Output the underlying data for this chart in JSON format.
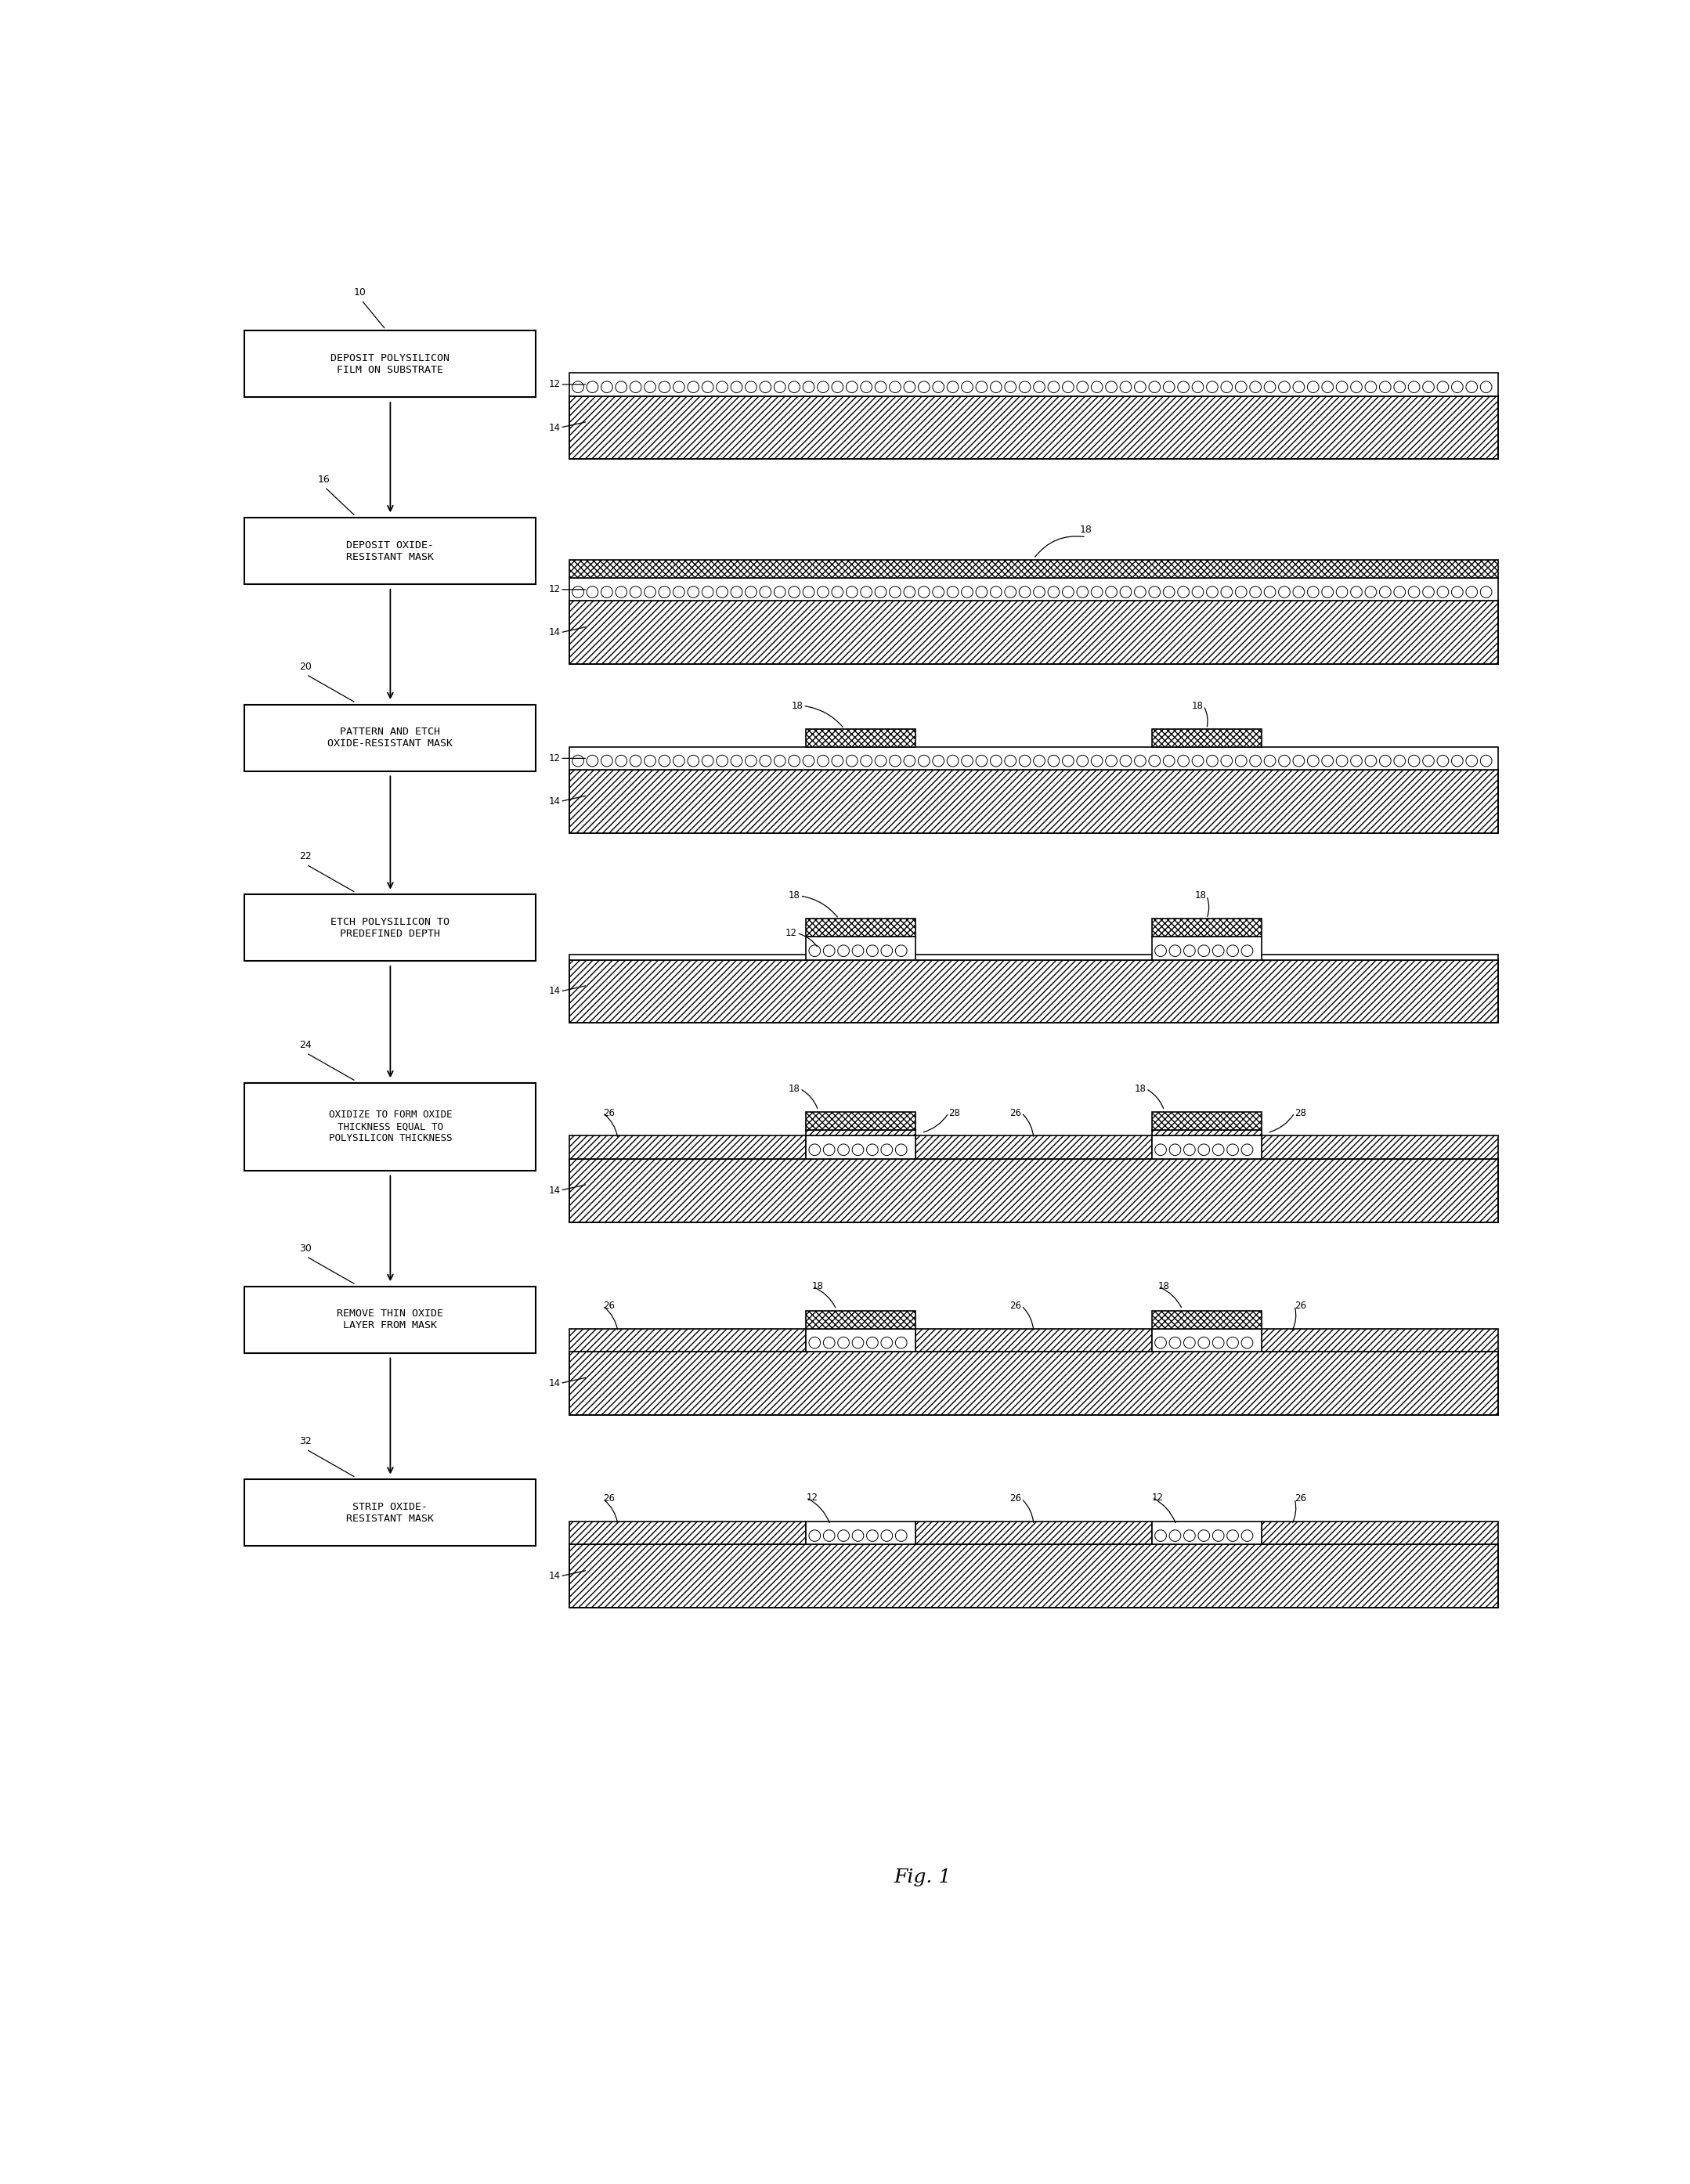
{
  "steps": [
    {
      "id": "10",
      "label": "DEPOSIT POLYSILICON\nFILM ON SUBSTRATE",
      "lines": 2
    },
    {
      "id": "16",
      "label": "DEPOSIT OXIDE-\nRESISTANT MASK",
      "lines": 2
    },
    {
      "id": "20",
      "label": "PATTERN AND ETCH\nOXIDE-RESISTANT MASK",
      "lines": 2
    },
    {
      "id": "22",
      "label": "ETCH POLYSILICON TO\nPREDEFINED DEPTH",
      "lines": 2
    },
    {
      "id": "24",
      "label": "OXIDIZE TO FORM OXIDE\nTHICKNESS EQUAL TO\nPOLYSILICON THICKNESS",
      "lines": 3
    },
    {
      "id": "30",
      "label": "REMOVE THIN OXIDE\nLAYER FROM MASK",
      "lines": 2
    },
    {
      "id": "32",
      "label": "STRIP OXIDE-\nRESISTANT MASK",
      "lines": 2
    }
  ],
  "fig_label": "Fig. 1",
  "bg": "#ffffff"
}
